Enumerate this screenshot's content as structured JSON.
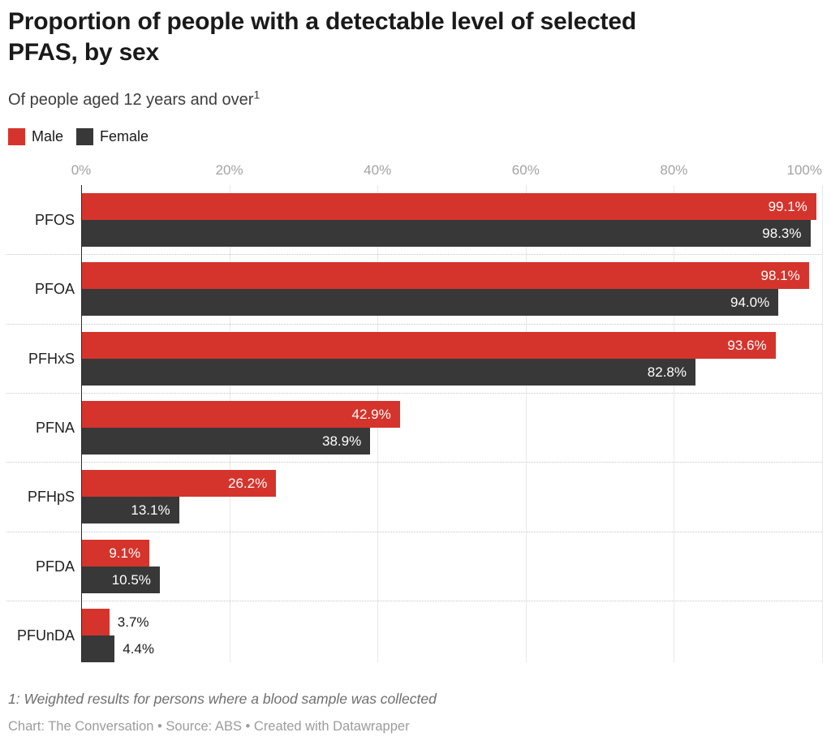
{
  "header": {
    "title": "Proportion of people with a detectable level of selected PFAS, by sex",
    "title_lines": [
      "Proportion of people with a detectable level of selected",
      "PFAS, by sex"
    ],
    "subtitle": "Of people aged 12 years and over",
    "footnote_marker": "1"
  },
  "legend": {
    "items": [
      {
        "label": "Male",
        "color": "#d5342c"
      },
      {
        "label": "Female",
        "color": "#383838"
      }
    ]
  },
  "chart_data": {
    "type": "bar",
    "orientation": "horizontal-grouped",
    "title": "Proportion of people with a detectable level of selected PFAS, by sex",
    "subtitle": "Of people aged 12 years and over",
    "categories": [
      "PFOS",
      "PFOA",
      "PFHxS",
      "PFNA",
      "PFHpS",
      "PFDA",
      "PFUnDA"
    ],
    "series": [
      {
        "name": "Male",
        "color": "#d5342c",
        "values": [
          99.1,
          98.1,
          93.6,
          42.9,
          26.2,
          9.1,
          3.7
        ],
        "labels": [
          "99.1%",
          "98.1%",
          "93.6%",
          "42.9%",
          "26.2%",
          "9.1%",
          "3.7%"
        ]
      },
      {
        "name": "Female",
        "color": "#383838",
        "values": [
          98.3,
          94.0,
          82.8,
          38.9,
          13.1,
          10.5,
          4.4
        ],
        "labels": [
          "98.3%",
          "94.0%",
          "82.8%",
          "38.9%",
          "13.1%",
          "10.5%",
          "4.4%"
        ]
      }
    ],
    "value_suffix": "%",
    "xlim": [
      0,
      100
    ],
    "x_ticks": [
      {
        "label": "0%",
        "value": 0
      },
      {
        "label": "20%",
        "value": 20
      },
      {
        "label": "40%",
        "value": 40
      },
      {
        "label": "60%",
        "value": 60
      },
      {
        "label": "80%",
        "value": 80
      },
      {
        "label": "100%",
        "value": 100
      }
    ],
    "grid": true,
    "legend_position": "top"
  },
  "footer": {
    "footnote": "1: Weighted results for persons where a blood sample was collected",
    "credit": "Chart: The Conversation • Source: ABS • Created with Datawrapper"
  }
}
